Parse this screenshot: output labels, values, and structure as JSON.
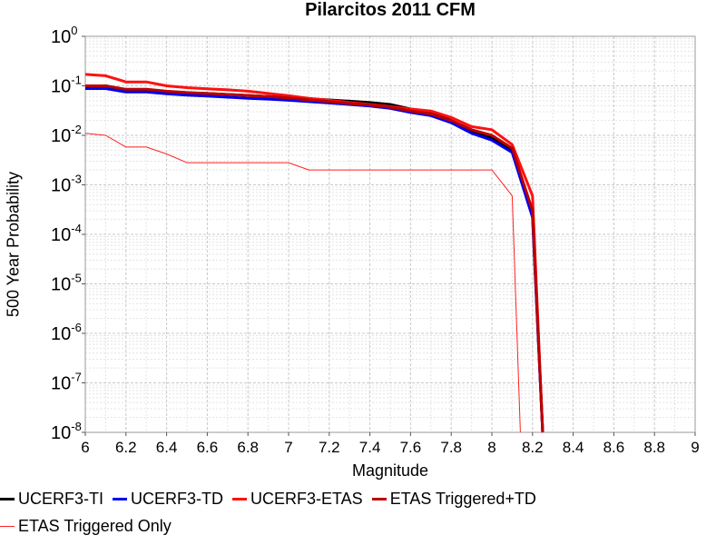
{
  "chart_data": {
    "type": "line",
    "title": "Pilarcitos 2011 CFM",
    "xlabel": "Magnitude",
    "ylabel": "500 Year Probability",
    "xlim": [
      6,
      9
    ],
    "ylim": [
      1e-08,
      1
    ],
    "yscale": "log",
    "x_ticks": [
      "6",
      "6.2",
      "6.4",
      "6.6",
      "6.8",
      "7",
      "7.2",
      "7.4",
      "7.6",
      "7.8",
      "8",
      "8.2",
      "8.4",
      "8.6",
      "8.8",
      "9"
    ],
    "y_ticks": [
      {
        "base": "10",
        "exp": "0",
        "value": 1
      },
      {
        "base": "10",
        "exp": "-1",
        "value": 0.1
      },
      {
        "base": "10",
        "exp": "-2",
        "value": 0.01
      },
      {
        "base": "10",
        "exp": "-3",
        "value": 0.001
      },
      {
        "base": "10",
        "exp": "-4",
        "value": 0.0001
      },
      {
        "base": "10",
        "exp": "-5",
        "value": 1e-05
      },
      {
        "base": "10",
        "exp": "-6",
        "value": 1e-06
      },
      {
        "base": "10",
        "exp": "-7",
        "value": 1e-07
      },
      {
        "base": "10",
        "exp": "-8",
        "value": 1e-08
      }
    ],
    "grid": true,
    "legend_position": "bottom",
    "series": [
      {
        "name": "UCERF3-TI",
        "color": "#000000",
        "width": 3,
        "x": [
          6,
          6.1,
          6.2,
          6.3,
          6.4,
          6.5,
          6.6,
          6.7,
          6.8,
          6.9,
          7,
          7.1,
          7.2,
          7.3,
          7.4,
          7.5,
          7.6,
          7.7,
          7.8,
          7.9,
          8,
          8.1,
          8.2,
          8.25
        ],
        "y": [
          0.1,
          0.1,
          0.083,
          0.083,
          0.077,
          0.072,
          0.07,
          0.067,
          0.064,
          0.061,
          0.058,
          0.055,
          0.052,
          0.049,
          0.046,
          0.042,
          0.034,
          0.03,
          0.02,
          0.012,
          0.009,
          0.005,
          0.00025,
          1e-08
        ]
      },
      {
        "name": "UCERF3-TD",
        "color": "#0000ee",
        "width": 3,
        "x": [
          6,
          6.1,
          6.2,
          6.3,
          6.4,
          6.5,
          6.6,
          6.7,
          6.8,
          6.9,
          7,
          7.1,
          7.2,
          7.3,
          7.4,
          7.5,
          7.6,
          7.7,
          7.8,
          7.9,
          8,
          8.1,
          8.2,
          8.25
        ],
        "y": [
          0.088,
          0.088,
          0.075,
          0.075,
          0.069,
          0.065,
          0.062,
          0.059,
          0.056,
          0.054,
          0.051,
          0.048,
          0.045,
          0.042,
          0.039,
          0.035,
          0.029,
          0.025,
          0.018,
          0.011,
          0.008,
          0.0045,
          0.00022,
          1e-08
        ]
      },
      {
        "name": "UCERF3-ETAS",
        "color": "#ff1010",
        "width": 3,
        "x": [
          6,
          6.1,
          6.2,
          6.3,
          6.4,
          6.5,
          6.6,
          6.7,
          6.8,
          6.9,
          7,
          7.1,
          7.2,
          7.3,
          7.4,
          7.5,
          7.6,
          7.7,
          7.8,
          7.9,
          8,
          8.1,
          8.2,
          8.25
        ],
        "y": [
          0.17,
          0.16,
          0.12,
          0.12,
          0.1,
          0.092,
          0.087,
          0.083,
          0.078,
          0.07,
          0.063,
          0.056,
          0.051,
          0.046,
          0.042,
          0.038,
          0.034,
          0.031,
          0.023,
          0.015,
          0.013,
          0.0065,
          0.0006,
          1e-08
        ]
      },
      {
        "name": "ETAS Triggered+TD",
        "color": "#bb0000",
        "width": 3,
        "x": [
          6,
          6.1,
          6.2,
          6.3,
          6.4,
          6.5,
          6.6,
          6.7,
          6.8,
          6.9,
          7,
          7.1,
          7.2,
          7.3,
          7.4,
          7.5,
          7.6,
          7.7,
          7.8,
          7.9,
          8,
          8.1,
          8.2,
          8.25
        ],
        "y": [
          0.1,
          0.1,
          0.085,
          0.085,
          0.078,
          0.073,
          0.07,
          0.067,
          0.064,
          0.061,
          0.057,
          0.052,
          0.048,
          0.044,
          0.041,
          0.037,
          0.031,
          0.027,
          0.02,
          0.013,
          0.01,
          0.0055,
          0.0003,
          1e-08
        ]
      },
      {
        "name": "ETAS Triggered Only",
        "color": "#ff2020",
        "width": 1,
        "x": [
          6,
          6.1,
          6.2,
          6.3,
          6.4,
          6.5,
          6.6,
          6.7,
          6.8,
          6.9,
          7,
          7.1,
          7.2,
          7.3,
          7.4,
          7.5,
          7.6,
          7.7,
          7.8,
          7.9,
          8,
          8.1,
          8.14
        ],
        "y": [
          0.011,
          0.01,
          0.0058,
          0.0058,
          0.0042,
          0.0028,
          0.0028,
          0.0028,
          0.0028,
          0.0028,
          0.0028,
          0.002,
          0.002,
          0.002,
          0.002,
          0.002,
          0.002,
          0.002,
          0.002,
          0.002,
          0.002,
          0.0006,
          1e-08
        ]
      }
    ]
  }
}
